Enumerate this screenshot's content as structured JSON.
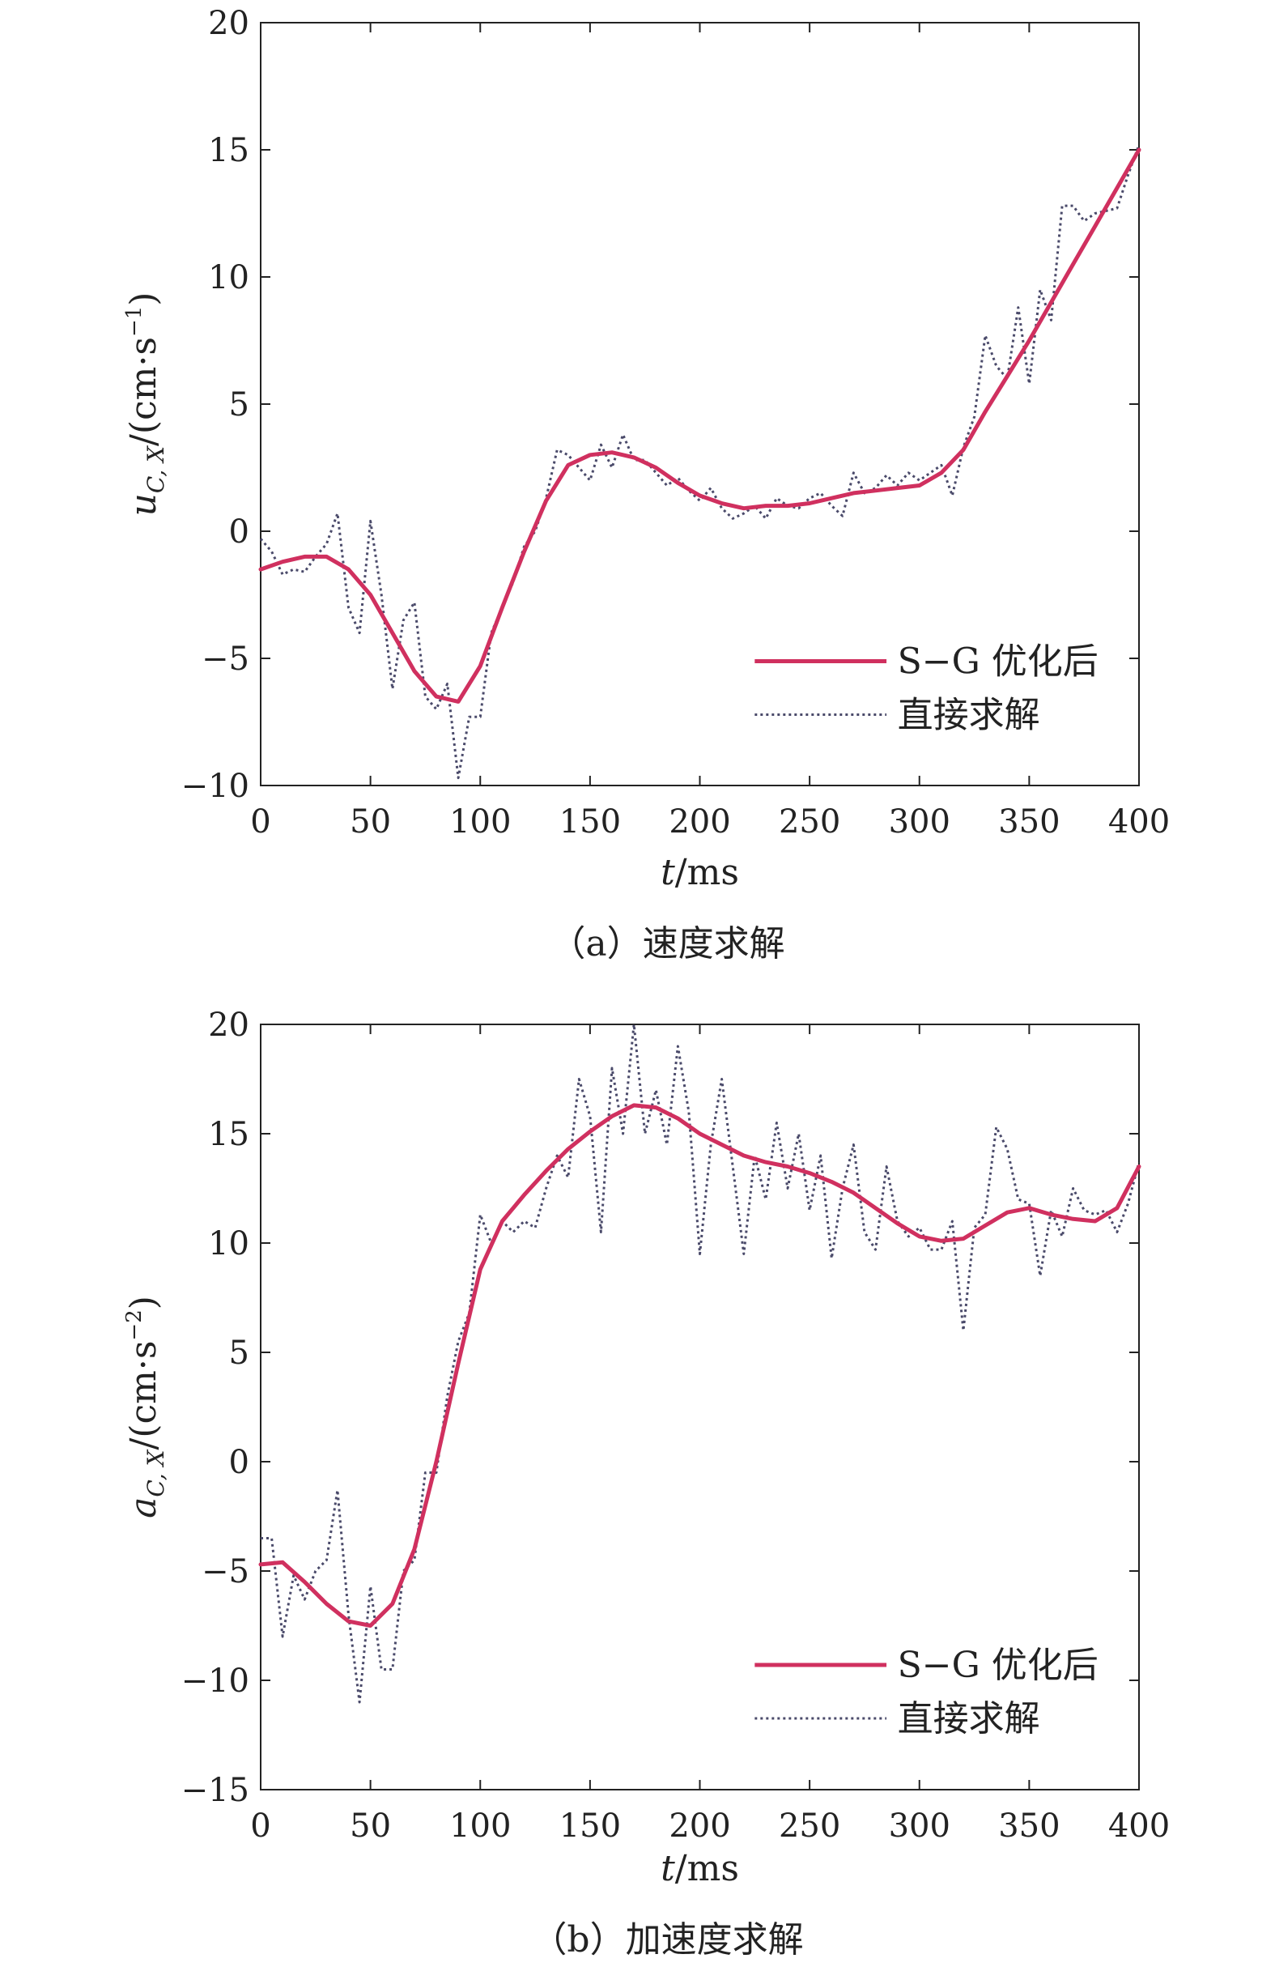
{
  "colors": {
    "sg_line": "#d0305f",
    "raw_line": "#4a4a6a",
    "axis": "#222222"
  },
  "chart_data": [
    {
      "type": "line",
      "caption": "（a）速度求解",
      "xlabel_italic": "t",
      "xlabel_unit": "/ms",
      "ylabel_sym": "u",
      "ylabel_sub": "C, X",
      "ylabel_unit": "/(cm·s",
      "ylabel_exp": "−1",
      "ylabel_close": ")",
      "xlim": [
        0,
        400
      ],
      "ylim": [
        -10,
        20
      ],
      "xticks": [
        0,
        50,
        100,
        150,
        200,
        250,
        300,
        350,
        400
      ],
      "xtick_labels": [
        "0",
        "50",
        "100",
        "150",
        "200",
        "250",
        "300",
        "350",
        "400"
      ],
      "yticks": [
        -10,
        -5,
        0,
        5,
        10,
        15,
        20
      ],
      "ytick_labels": [
        "−10",
        "−5",
        "0",
        "5",
        "10",
        "15",
        "20"
      ],
      "legend_position": "lower-right",
      "grid": false,
      "series": [
        {
          "name": "S−G 优化后",
          "style": "solid",
          "x": [
            0,
            10,
            20,
            30,
            40,
            50,
            60,
            70,
            80,
            90,
            100,
            110,
            120,
            130,
            140,
            150,
            160,
            170,
            180,
            190,
            200,
            210,
            220,
            230,
            240,
            250,
            260,
            270,
            280,
            290,
            300,
            310,
            320,
            330,
            340,
            350,
            360,
            370,
            380,
            390,
            400
          ],
          "y": [
            -1.5,
            -1.2,
            -1.0,
            -1.0,
            -1.5,
            -2.5,
            -4.0,
            -5.5,
            -6.5,
            -6.7,
            -5.3,
            -3.0,
            -0.8,
            1.2,
            2.6,
            3.0,
            3.1,
            2.9,
            2.5,
            1.9,
            1.4,
            1.1,
            0.9,
            1.0,
            1.0,
            1.1,
            1.3,
            1.5,
            1.6,
            1.7,
            1.8,
            2.3,
            3.2,
            4.7,
            6.1,
            7.5,
            9.0,
            10.5,
            12.0,
            13.5,
            15.0
          ]
        },
        {
          "name": "直接求解",
          "style": "dotted",
          "x": [
            0,
            5,
            10,
            15,
            20,
            25,
            30,
            35,
            40,
            45,
            50,
            55,
            60,
            65,
            70,
            75,
            80,
            85,
            90,
            95,
            100,
            105,
            110,
            115,
            120,
            125,
            130,
            135,
            140,
            145,
            150,
            155,
            160,
            165,
            170,
            175,
            180,
            185,
            190,
            195,
            200,
            205,
            210,
            215,
            220,
            225,
            230,
            235,
            240,
            245,
            250,
            255,
            260,
            265,
            270,
            275,
            280,
            285,
            290,
            295,
            300,
            305,
            310,
            315,
            320,
            325,
            330,
            335,
            340,
            345,
            350,
            355,
            360,
            365,
            370,
            375,
            380,
            385,
            390,
            395,
            400
          ],
          "y": [
            -0.3,
            -0.8,
            -1.7,
            -1.5,
            -1.6,
            -1.0,
            -0.5,
            0.7,
            -3.0,
            -4.0,
            0.4,
            -2.5,
            -6.2,
            -3.5,
            -2.8,
            -6.5,
            -7.0,
            -6.0,
            -9.7,
            -7.3,
            -7.3,
            -4.0,
            -3.0,
            -2.0,
            -0.6,
            0.0,
            1.3,
            3.2,
            3.0,
            2.5,
            2.0,
            3.4,
            2.5,
            3.8,
            2.8,
            2.8,
            2.3,
            1.8,
            2.1,
            1.6,
            1.2,
            1.7,
            0.9,
            0.5,
            0.7,
            1.0,
            0.5,
            1.3,
            1.0,
            0.9,
            1.3,
            1.5,
            1.0,
            0.6,
            2.3,
            1.5,
            1.7,
            2.2,
            1.8,
            2.3,
            2.0,
            2.3,
            2.6,
            1.4,
            3.3,
            4.5,
            7.7,
            6.5,
            6.0,
            8.8,
            5.8,
            9.5,
            8.3,
            12.8,
            12.8,
            12.2,
            12.5,
            12.6,
            12.7,
            14.0,
            15.2
          ]
        }
      ]
    },
    {
      "type": "line",
      "caption": "（b）加速度求解",
      "xlabel_italic": "t",
      "xlabel_unit": "/ms",
      "ylabel_sym": "a",
      "ylabel_sub": "C, X",
      "ylabel_unit": "/(cm·s",
      "ylabel_exp": "−2",
      "ylabel_close": ")",
      "xlim": [
        0,
        400
      ],
      "ylim": [
        -15,
        20
      ],
      "xticks": [
        0,
        50,
        100,
        150,
        200,
        250,
        300,
        350,
        400
      ],
      "xtick_labels": [
        "0",
        "50",
        "100",
        "150",
        "200",
        "250",
        "300",
        "350",
        "400"
      ],
      "yticks": [
        -15,
        -10,
        -5,
        0,
        5,
        10,
        15,
        20
      ],
      "ytick_labels": [
        "−15",
        "−10",
        "−5",
        "0",
        "5",
        "10",
        "15",
        "20"
      ],
      "legend_position": "lower-right",
      "grid": false,
      "series": [
        {
          "name": "S−G 优化后",
          "style": "solid",
          "x": [
            0,
            10,
            20,
            30,
            40,
            50,
            60,
            70,
            80,
            90,
            100,
            110,
            120,
            130,
            140,
            150,
            160,
            170,
            180,
            190,
            200,
            210,
            220,
            230,
            240,
            250,
            260,
            270,
            280,
            290,
            300,
            310,
            320,
            330,
            340,
            350,
            360,
            370,
            380,
            390,
            400
          ],
          "y": [
            -4.7,
            -4.6,
            -5.5,
            -6.5,
            -7.3,
            -7.5,
            -6.5,
            -4.0,
            0.0,
            4.5,
            8.8,
            11.0,
            12.2,
            13.3,
            14.3,
            15.1,
            15.8,
            16.3,
            16.2,
            15.7,
            15.0,
            14.5,
            14.0,
            13.7,
            13.5,
            13.2,
            12.8,
            12.3,
            11.6,
            10.9,
            10.3,
            10.1,
            10.2,
            10.8,
            11.4,
            11.6,
            11.3,
            11.1,
            11.0,
            11.6,
            13.5
          ]
        },
        {
          "name": "直接求解",
          "style": "dotted",
          "x": [
            0,
            5,
            10,
            15,
            20,
            25,
            30,
            35,
            40,
            45,
            50,
            55,
            60,
            65,
            70,
            75,
            80,
            85,
            90,
            95,
            100,
            105,
            110,
            115,
            120,
            125,
            130,
            135,
            140,
            145,
            150,
            155,
            160,
            165,
            170,
            175,
            180,
            185,
            190,
            195,
            200,
            205,
            210,
            215,
            220,
            225,
            230,
            235,
            240,
            245,
            250,
            255,
            260,
            265,
            270,
            275,
            280,
            285,
            290,
            295,
            300,
            305,
            310,
            315,
            320,
            325,
            330,
            335,
            340,
            345,
            350,
            355,
            360,
            365,
            370,
            375,
            380,
            385,
            390,
            395,
            400
          ],
          "y": [
            -3.5,
            -3.5,
            -8.0,
            -5.2,
            -6.3,
            -5.0,
            -4.5,
            -1.3,
            -7.0,
            -11.0,
            -5.7,
            -9.5,
            -9.5,
            -5.0,
            -4.5,
            -0.5,
            -0.5,
            3.0,
            5.5,
            6.8,
            11.3,
            10.0,
            11.0,
            10.5,
            11.0,
            10.7,
            12.5,
            14.0,
            13.0,
            17.5,
            15.8,
            10.5,
            18.0,
            15.0,
            20.0,
            15.0,
            17.0,
            14.5,
            19.0,
            16.0,
            9.5,
            14.5,
            17.5,
            13.5,
            9.5,
            14.0,
            12.0,
            15.5,
            12.5,
            15.0,
            11.5,
            14.0,
            9.3,
            12.5,
            14.5,
            10.5,
            9.7,
            13.5,
            11.0,
            10.3,
            10.7,
            9.7,
            9.7,
            11.0,
            6.0,
            10.7,
            11.3,
            15.3,
            14.3,
            12.0,
            11.8,
            8.5,
            11.5,
            10.3,
            12.5,
            11.5,
            11.3,
            11.5,
            10.5,
            11.8,
            13.7
          ]
        }
      ]
    }
  ]
}
